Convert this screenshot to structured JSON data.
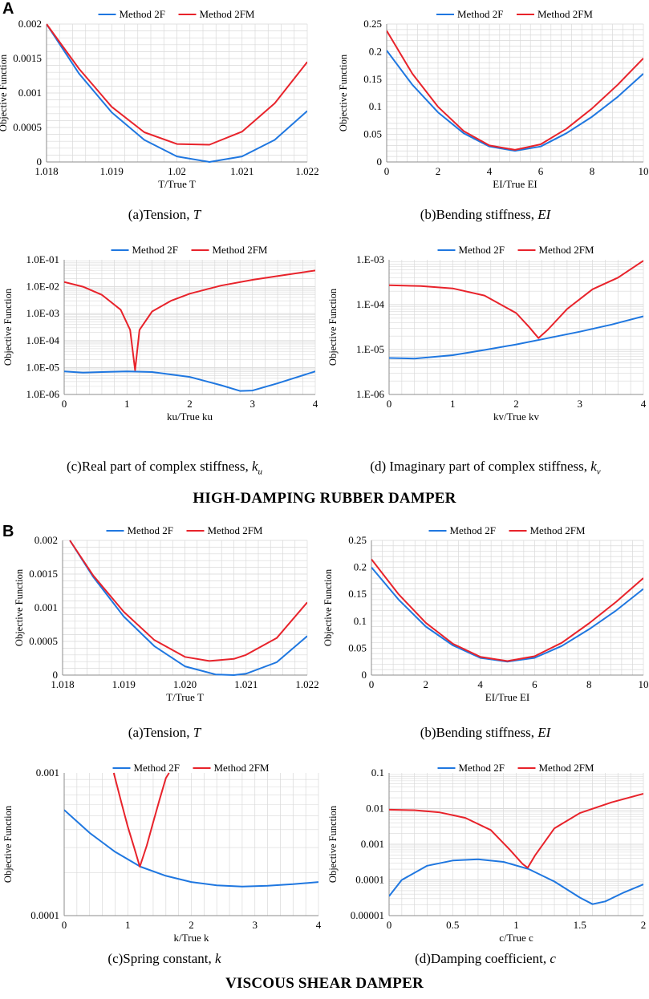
{
  "labels": {
    "a": "A",
    "b": "B"
  },
  "section_titles": {
    "a": "HIGH-DAMPING RUBBER DAMPER",
    "b": "VISCOUS SHEAR DAMPER"
  },
  "colors": {
    "method2F": "#1f77e0",
    "method2FM": "#e8232b",
    "grid": "#d9d9d9",
    "axis": "#8c8c8c"
  },
  "captions": [
    {
      "text": "(a)Tension, ",
      "var": "T",
      "sub": ""
    },
    {
      "text": "(b)Bending stiffness, ",
      "var": "EI",
      "sub": ""
    },
    {
      "text": "(c)Real part of complex stiffness, ",
      "var": "k",
      "sub": "u"
    },
    {
      "text": "(d) Imaginary part of complex stiffness, ",
      "var": "k",
      "sub": "v"
    },
    {
      "text": "(a)Tension, ",
      "var": "T",
      "sub": ""
    },
    {
      "text": "(b)Bending stiffness, ",
      "var": "EI",
      "sub": ""
    },
    {
      "text": "(c)Spring constant, ",
      "var": "k",
      "sub": ""
    },
    {
      "text": "(d)Damping coefficient, ",
      "var": "c",
      "sub": ""
    }
  ],
  "chart_data": [
    {
      "id": "A-a",
      "type": "line",
      "xlabel": "T/True T",
      "ylabel": "Objective Function",
      "xlim": [
        1.018,
        1.022
      ],
      "ylim": [
        0,
        0.002
      ],
      "yscale": "linear",
      "xticks": [
        "1.018",
        "1.019",
        "1.02",
        "1.021",
        "1.022"
      ],
      "xtickvals": [
        1.018,
        1.019,
        1.02,
        1.021,
        1.022
      ],
      "yticks": [
        "0",
        "0.0005",
        "0.001",
        "0.0015",
        "0.002"
      ],
      "ytickvals": [
        0,
        0.0005,
        0.001,
        0.0015,
        0.002
      ],
      "series": [
        {
          "name": "Method 2F",
          "x": [
            1.018,
            1.0185,
            1.019,
            1.0195,
            1.02,
            1.0205,
            1.021,
            1.0215,
            1.022
          ],
          "y": [
            0.002,
            0.00128,
            0.00072,
            0.00032,
            8e-05,
            0.0,
            8e-05,
            0.00032,
            0.00074
          ]
        },
        {
          "name": "Method 2FM",
          "x": [
            1.018,
            1.0185,
            1.019,
            1.0195,
            1.02,
            1.0205,
            1.021,
            1.0215,
            1.022
          ],
          "y": [
            0.002,
            0.00135,
            0.0008,
            0.00043,
            0.00026,
            0.00025,
            0.00044,
            0.00085,
            0.00145
          ]
        }
      ]
    },
    {
      "id": "A-b",
      "type": "line",
      "xlabel": "EI/True EI",
      "ylabel": "Objective Function",
      "xlim": [
        0,
        10
      ],
      "ylim": [
        0,
        0.25
      ],
      "yscale": "linear",
      "xticks": [
        "0",
        "2",
        "4",
        "6",
        "8",
        "10"
      ],
      "xtickvals": [
        0,
        2,
        4,
        6,
        8,
        10
      ],
      "yticks": [
        "0",
        "0.05",
        "0.1",
        "0.15",
        "0.2",
        "0.25"
      ],
      "ytickvals": [
        0,
        0.05,
        0.1,
        0.15,
        0.2,
        0.25
      ],
      "series": [
        {
          "name": "Method 2F",
          "x": [
            0,
            1,
            2,
            3,
            4,
            5,
            6,
            7,
            8,
            9,
            10
          ],
          "y": [
            0.202,
            0.14,
            0.09,
            0.052,
            0.028,
            0.02,
            0.028,
            0.052,
            0.082,
            0.118,
            0.16
          ]
        },
        {
          "name": "Method 2FM",
          "x": [
            0,
            1,
            2,
            3,
            4,
            5,
            6,
            7,
            8,
            9,
            10
          ],
          "y": [
            0.238,
            0.16,
            0.1,
            0.056,
            0.03,
            0.022,
            0.032,
            0.06,
            0.097,
            0.14,
            0.188
          ]
        }
      ]
    },
    {
      "id": "A-c",
      "type": "line",
      "xlabel": "ku/True ku",
      "ylabel": "Objective Function",
      "xlim": [
        0,
        4
      ],
      "ylim": [
        1e-06,
        0.1
      ],
      "yscale": "log",
      "xticks": [
        "0",
        "1",
        "2",
        "3",
        "4"
      ],
      "xtickvals": [
        0,
        1,
        2,
        3,
        4
      ],
      "yticks": [
        "1.0E-06",
        "1.0E-05",
        "1.0E-04",
        "1.0E-03",
        "1.0E-02",
        "1.0E-01"
      ],
      "ytickvals": [
        1e-06,
        1e-05,
        0.0001,
        0.001,
        0.01,
        0.1
      ],
      "series": [
        {
          "name": "Method 2F",
          "x": [
            0,
            0.3,
            0.6,
            1,
            1.4,
            2,
            2.5,
            2.8,
            3,
            3.4,
            4
          ],
          "y": [
            7.2e-06,
            6.5e-06,
            6.8e-06,
            7.2e-06,
            6.8e-06,
            4.5e-06,
            2.2e-06,
            1.35e-06,
            1.4e-06,
            2.6e-06,
            7.2e-06
          ]
        },
        {
          "name": "Method 2FM",
          "x": [
            0,
            0.3,
            0.6,
            0.9,
            1.05,
            1.13,
            1.2,
            1.4,
            1.7,
            2,
            2.5,
            3,
            3.5,
            4
          ],
          "y": [
            0.015,
            0.01,
            0.005,
            0.0014,
            0.00025,
            8e-06,
            0.00025,
            0.0012,
            0.003,
            0.0055,
            0.011,
            0.018,
            0.027,
            0.04
          ]
        }
      ]
    },
    {
      "id": "A-d",
      "type": "line",
      "xlabel": "kv/True kv",
      "ylabel": "Objective Function",
      "xlim": [
        0,
        4
      ],
      "ylim": [
        1e-06,
        0.001
      ],
      "yscale": "log",
      "xticks": [
        "0",
        "1",
        "2",
        "3",
        "4"
      ],
      "xtickvals": [
        0,
        1,
        2,
        3,
        4
      ],
      "yticks": [
        "1.E-06",
        "1.E-05",
        "1.E-04",
        "1.E-03"
      ],
      "ytickvals": [
        1e-06,
        1e-05,
        0.0001,
        0.001
      ],
      "series": [
        {
          "name": "Method 2F",
          "x": [
            0,
            0.4,
            1,
            1.5,
            2,
            2.5,
            3,
            3.5,
            4
          ],
          "y": [
            6.5e-06,
            6.3e-06,
            7.5e-06,
            9.8e-06,
            1.3e-05,
            1.8e-05,
            2.5e-05,
            3.6e-05,
            5.5e-05
          ]
        },
        {
          "name": "Method 2FM",
          "x": [
            0,
            0.5,
            1,
            1.5,
            2,
            2.2,
            2.35,
            2.5,
            2.8,
            3.2,
            3.6,
            4
          ],
          "y": [
            0.00027,
            0.00026,
            0.00023,
            0.00016,
            6.5e-05,
            3.2e-05,
            1.8e-05,
            2.8e-05,
            8e-05,
            0.00022,
            0.0004,
            0.00095
          ]
        }
      ]
    },
    {
      "id": "B-a",
      "type": "line",
      "xlabel": "T/True T",
      "ylabel": "Objective Function",
      "xlim": [
        1.018,
        1.022
      ],
      "ylim": [
        0,
        0.002
      ],
      "yscale": "linear",
      "xticks": [
        "1.018",
        "1.019",
        "1.020",
        "1.021",
        "1.022"
      ],
      "xtickvals": [
        1.018,
        1.019,
        1.02,
        1.021,
        1.022
      ],
      "yticks": [
        "0",
        "0.0005",
        "0.001",
        "0.0015",
        "0.002"
      ],
      "ytickvals": [
        0,
        0.0005,
        0.001,
        0.0015,
        0.002
      ],
      "series": [
        {
          "name": "Method 2F",
          "x": [
            1.01812,
            1.0185,
            1.019,
            1.0195,
            1.02,
            1.0205,
            1.0208,
            1.021,
            1.0215,
            1.022
          ],
          "y": [
            0.002,
            0.00146,
            0.00087,
            0.00043,
            0.00013,
            1e-05,
            0.0,
            2e-05,
            0.00019,
            0.00058
          ]
        },
        {
          "name": "Method 2FM",
          "x": [
            1.01812,
            1.0185,
            1.019,
            1.0195,
            1.02,
            1.0204,
            1.0208,
            1.021,
            1.0215,
            1.022
          ],
          "y": [
            0.002,
            0.00148,
            0.00094,
            0.00052,
            0.00027,
            0.00021,
            0.00024,
            0.0003,
            0.00055,
            0.00108
          ]
        }
      ]
    },
    {
      "id": "B-b",
      "type": "line",
      "xlabel": "EI/True EI",
      "ylabel": "Objective Function",
      "xlim": [
        0,
        10
      ],
      "ylim": [
        0,
        0.25
      ],
      "yscale": "linear",
      "xticks": [
        "0",
        "2",
        "4",
        "6",
        "8",
        "10"
      ],
      "xtickvals": [
        0,
        2,
        4,
        6,
        8,
        10
      ],
      "yticks": [
        "0",
        "0.05",
        "0.1",
        "0.15",
        "0.2",
        "0.25"
      ],
      "ytickvals": [
        0,
        0.05,
        0.1,
        0.15,
        0.2,
        0.25
      ],
      "series": [
        {
          "name": "Method 2F",
          "x": [
            0,
            1,
            2,
            3,
            4,
            5,
            6,
            7,
            8,
            9,
            10
          ],
          "y": [
            0.2,
            0.14,
            0.09,
            0.055,
            0.032,
            0.025,
            0.032,
            0.054,
            0.085,
            0.12,
            0.16
          ]
        },
        {
          "name": "Method 2FM",
          "x": [
            0,
            1,
            2,
            3,
            4,
            5,
            6,
            7,
            8,
            9,
            10
          ],
          "y": [
            0.215,
            0.15,
            0.097,
            0.058,
            0.034,
            0.026,
            0.035,
            0.06,
            0.096,
            0.136,
            0.18
          ]
        }
      ]
    },
    {
      "id": "B-c",
      "type": "line",
      "xlabel": "k/True k",
      "ylabel": "Objective Function",
      "xlim": [
        0,
        4
      ],
      "ylim": [
        0.0001,
        0.001
      ],
      "yscale": "log",
      "xticks": [
        "0",
        "1",
        "2",
        "3",
        "4"
      ],
      "xtickvals": [
        0,
        1,
        2,
        3,
        4
      ],
      "yticks": [
        "0.0001",
        "0.001"
      ],
      "ytickvals": [
        0.0001,
        0.001
      ],
      "series": [
        {
          "name": "Method 2F",
          "x": [
            0,
            0.4,
            0.8,
            1.2,
            1.6,
            2,
            2.4,
            2.8,
            3.2,
            3.6,
            4
          ],
          "y": [
            0.00055,
            0.00038,
            0.00028,
            0.00022,
            0.00019,
            0.000172,
            0.000163,
            0.00016,
            0.000162,
            0.000166,
            0.000172
          ]
        },
        {
          "name": "Method 2FM",
          "x": [
            0.78,
            0.9,
            1.0,
            1.1,
            1.19,
            1.3,
            1.4,
            1.5,
            1.6,
            1.65
          ],
          "y": [
            0.001,
            0.00062,
            0.00042,
            0.0003,
            0.00022,
            0.00031,
            0.00045,
            0.00065,
            0.00092,
            0.001
          ]
        }
      ]
    },
    {
      "id": "B-d",
      "type": "line",
      "xlabel": "c/True c",
      "ylabel": "Objective Function",
      "xlim": [
        0,
        2
      ],
      "ylim": [
        1e-05,
        0.1
      ],
      "yscale": "log",
      "xticks": [
        "0",
        "0.5",
        "1",
        "1.5",
        "2"
      ],
      "xtickvals": [
        0,
        0.5,
        1,
        1.5,
        2
      ],
      "yticks": [
        "0.00001",
        "0.0001",
        "0.001",
        "0.01",
        "0.1"
      ],
      "ytickvals": [
        1e-05,
        0.0001,
        0.001,
        0.01,
        0.1
      ],
      "series": [
        {
          "name": "Method 2F",
          "x": [
            0,
            0.1,
            0.3,
            0.5,
            0.7,
            0.9,
            1.1,
            1.3,
            1.5,
            1.6,
            1.7,
            1.85,
            2
          ],
          "y": [
            3.5e-05,
            0.0001,
            0.00025,
            0.00035,
            0.00038,
            0.00032,
            0.0002,
            9e-05,
            3.2e-05,
            2.1e-05,
            2.5e-05,
            4.5e-05,
            7.5e-05
          ]
        },
        {
          "name": "Method 2FM",
          "x": [
            0,
            0.2,
            0.4,
            0.6,
            0.8,
            0.95,
            1.05,
            1.09,
            1.15,
            1.3,
            1.5,
            1.75,
            2
          ],
          "y": [
            0.0093,
            0.009,
            0.0078,
            0.0055,
            0.0025,
            0.0007,
            0.00028,
            0.00022,
            0.0005,
            0.0028,
            0.0075,
            0.015,
            0.026
          ]
        }
      ]
    }
  ]
}
